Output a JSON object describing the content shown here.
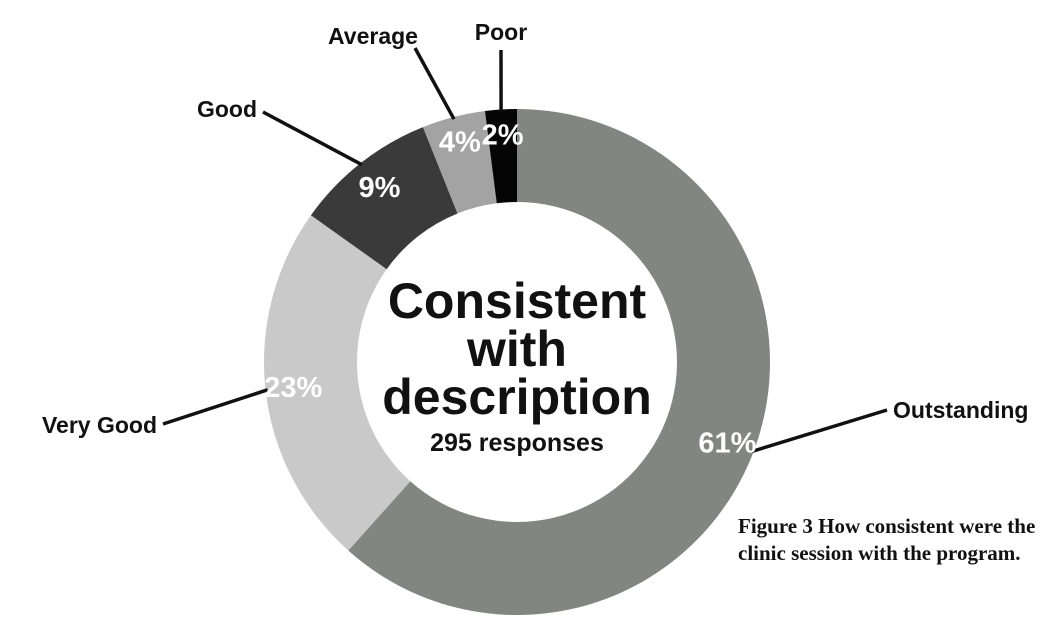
{
  "chart_data": {
    "type": "pie",
    "title": "Consistent with description",
    "subtitle": "295 responses",
    "categories": [
      "Outstanding",
      "Very Good",
      "Good",
      "Average",
      "Poor"
    ],
    "values": [
      61,
      23,
      9,
      4,
      2
    ],
    "value_labels": [
      "61%",
      "23%",
      "9%",
      "4%",
      "2%"
    ],
    "colors": [
      "#838680",
      "#c9c9c9",
      "#3a3a3a",
      "#a3a3a3",
      "#050505"
    ],
    "donut": true,
    "legend": "none"
  },
  "caption": "Figure 3 How consistent were the clinic session with the program."
}
